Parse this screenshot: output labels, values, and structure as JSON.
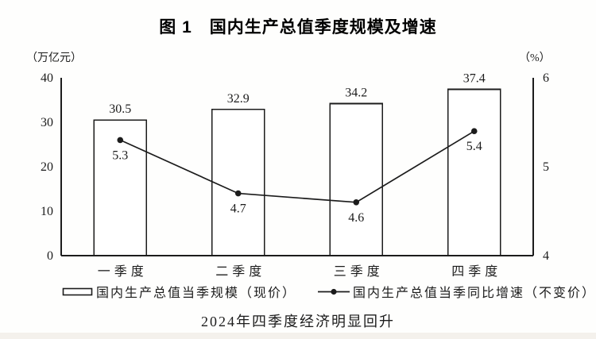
{
  "page": {
    "title": "图 1　国内生产总值季度规模及增速",
    "unit_left": "（万亿元）",
    "unit_right": "（%）",
    "caption": "2024年四季度经济明显回升"
  },
  "legend": {
    "bar_label": "国内生产总值当季规模（现价）",
    "line_label": "国内生产总值当季同比增速（不变价）"
  },
  "chart_data": {
    "type": "bar",
    "title": "图 1　国内生产总值季度规模及增速",
    "categories": [
      "一季度",
      "二季度",
      "三季度",
      "四季度"
    ],
    "series": [
      {
        "name": "国内生产总值当季规模（现价）",
        "type": "bar",
        "axis": "left",
        "values": [
          30.5,
          32.9,
          34.2,
          37.4
        ]
      },
      {
        "name": "国内生产总值当季同比增速（不变价）",
        "type": "line",
        "axis": "right",
        "values": [
          5.3,
          4.7,
          4.6,
          5.4
        ]
      }
    ],
    "ylabel_left": "万亿元",
    "ylabel_right": "%",
    "ylim_left": [
      0,
      40
    ],
    "yticks_left": [
      0,
      10,
      20,
      30,
      40
    ],
    "ylim_right": [
      4,
      6
    ],
    "yticks_right": [
      4,
      5,
      6
    ],
    "grid": false,
    "legend_position": "bottom",
    "colors": {
      "ink": "#1c1c1c",
      "bar_fill": "#ffffff",
      "background": "#fefefd"
    }
  }
}
